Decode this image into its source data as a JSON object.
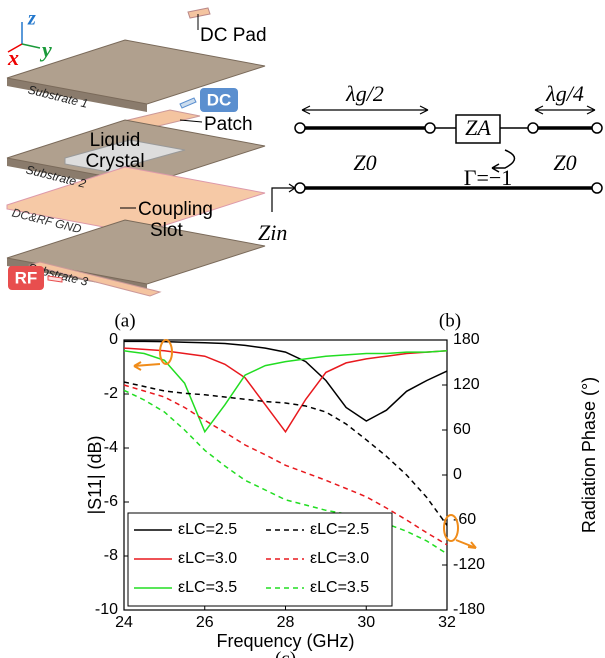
{
  "figure_a": {
    "axes": {
      "z": "z",
      "x": "x",
      "y": "y"
    },
    "labels": {
      "dc_pad": "DC Pad",
      "substrate_1": "Substrate 1",
      "dc": "DC",
      "patch": "Patch",
      "liquid": "Liquid",
      "crystal": "Crystal",
      "substrate_2": "Substrate 2",
      "coupling": "Coupling",
      "slot": "Slot",
      "gnd": "DC&RF GND",
      "substrate_3": "Substrate 3",
      "rf": "RF"
    },
    "caption": "(a)"
  },
  "figure_b": {
    "lambda_half": "λg/2",
    "lambda_quarter": "λg/4",
    "za": "ZA",
    "z0_left": "Z0",
    "z0_right": "Z0",
    "gamma": "Γ=−1",
    "zin": "Zin",
    "caption": "(b)"
  },
  "chart_data": {
    "type": "line",
    "caption": "(c)",
    "x_label": "Frequency (GHz)",
    "y_label": "|S11| (dB)",
    "y2_label": "Radiation Phase (°)",
    "x": [
      24,
      24.5,
      25,
      25.5,
      26,
      26.5,
      27,
      27.5,
      28,
      28.5,
      29,
      29.5,
      30,
      30.5,
      31,
      31.5,
      32
    ],
    "xlim": [
      24,
      32
    ],
    "xticks": [
      24,
      26,
      28,
      30,
      32
    ],
    "ylim": [
      -10,
      0
    ],
    "yticks": [
      -10,
      -8,
      -6,
      -4,
      -2,
      0
    ],
    "y2lim": [
      -180,
      180
    ],
    "y2ticks": [
      -180,
      -120,
      -60,
      0,
      60,
      120,
      180
    ],
    "legend": "lower left",
    "series": [
      {
        "name": "εLC=2.5",
        "color": "#000000",
        "line_style": "solid",
        "values": [
          -0.05,
          -0.05,
          -0.06,
          -0.08,
          -0.1,
          -0.13,
          -0.2,
          -0.3,
          -0.45,
          -0.8,
          -1.5,
          -2.5,
          -3.0,
          -2.6,
          -1.9,
          -1.5,
          -1.15
        ]
      },
      {
        "name": "εLC=3.0",
        "color": "#e8191e",
        "line_style": "solid",
        "values": [
          -0.3,
          -0.35,
          -0.4,
          -0.5,
          -0.6,
          -0.9,
          -1.4,
          -2.4,
          -3.4,
          -2.2,
          -1.2,
          -0.85,
          -0.7,
          -0.6,
          -0.5,
          -0.45,
          -0.4
        ]
      },
      {
        "name": "εLC=3.5",
        "color": "#22dd22",
        "line_style": "solid",
        "values": [
          -0.4,
          -0.5,
          -0.75,
          -1.6,
          -3.4,
          -2.4,
          -1.3,
          -0.95,
          -0.8,
          -0.7,
          -0.6,
          -0.55,
          -0.5,
          -0.5,
          -0.45,
          -0.45,
          -0.4
        ]
      },
      {
        "name": "εLC=2.5",
        "color": "#000000",
        "line_style": "dashed",
        "axis": "y2",
        "values": [
          124,
          118,
          112,
          109,
          107,
          104,
          101,
          98,
          96,
          92,
          84,
          68,
          47,
          25,
          0,
          -30,
          -67
        ]
      },
      {
        "name": "εLC=3.0",
        "color": "#e8191e",
        "line_style": "dashed",
        "axis": "y2",
        "values": [
          120,
          112,
          104,
          90,
          73,
          57,
          40,
          27,
          13,
          3,
          -7,
          -18,
          -29,
          -44,
          -60,
          -77,
          -93
        ]
      },
      {
        "name": "εLC=3.5",
        "color": "#22dd22",
        "line_style": "dashed",
        "axis": "y2",
        "values": [
          113,
          100,
          84,
          60,
          33,
          12,
          -7,
          -20,
          -33,
          -40,
          -47,
          -52,
          -58,
          -65,
          -75,
          -88,
          -105
        ]
      }
    ]
  }
}
